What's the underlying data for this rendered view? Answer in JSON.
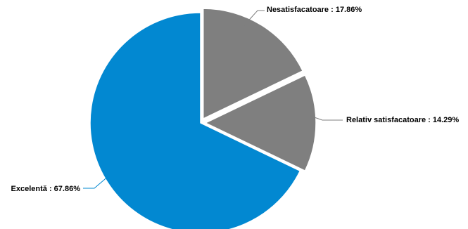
{
  "chart_data": {
    "type": "pie",
    "start_angle_deg": 0,
    "direction": "clockwise",
    "slices": [
      {
        "label": "Nesatisfacatoare",
        "value": 17.86,
        "display": "Nesatisfacatoare : 17.86%",
        "color": "#7f7f7f",
        "exploded": true
      },
      {
        "label": "Relativ satisfacatoare",
        "value": 14.29,
        "display": "Relativ satisfacatoare : 14.29%",
        "color": "#7f7f7f",
        "exploded": true
      },
      {
        "label": "Excelentă",
        "value": 67.86,
        "display": "Excelentă : 67.86%",
        "color": "#0288d1",
        "exploded": false
      }
    ],
    "slice_border_color": "#ffffff"
  }
}
